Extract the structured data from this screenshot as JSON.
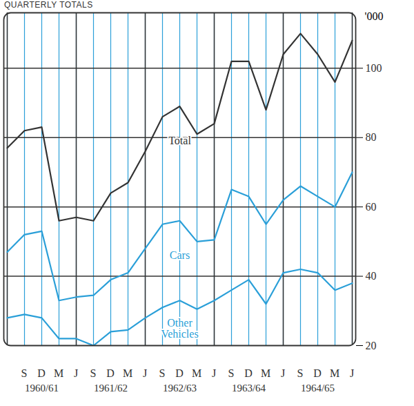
{
  "chart_data": {
    "type": "line",
    "title": "QUARTERLY TOTALS",
    "y_label": "'000",
    "categories": [
      null,
      "S",
      "D",
      "M",
      "J",
      "S",
      "D",
      "M",
      "J",
      "S",
      "D",
      "M",
      "J",
      "S",
      "D",
      "M",
      "J",
      "S",
      "D",
      "M",
      "J"
    ],
    "period_labels": [
      "1960/61",
      "1961/62",
      "1962/63",
      "1963/64",
      "1964/65"
    ],
    "series": [
      {
        "name": "Total",
        "color": "#333333",
        "values": [
          77,
          82,
          83,
          56,
          57,
          56,
          64,
          67,
          76,
          86,
          89,
          81,
          84,
          102,
          102,
          88,
          104,
          110,
          104,
          96,
          108
        ]
      },
      {
        "name": "Cars",
        "color": "#2a9fd8",
        "values": [
          47,
          52,
          53,
          33,
          34,
          34.5,
          39,
          41,
          48,
          55,
          56,
          50,
          50.5,
          65,
          63,
          55,
          62,
          66,
          63,
          60,
          70
        ]
      },
      {
        "name": "Other Vehicles",
        "color": "#2a9fd8",
        "values": [
          28,
          29,
          28,
          22,
          22,
          20,
          24,
          24.5,
          28,
          31,
          33,
          30.5,
          33,
          36,
          39,
          32,
          41,
          42,
          41,
          36,
          38
        ]
      }
    ],
    "ylim": [
      20,
      116
    ],
    "yticks": [
      20,
      40,
      60,
      80,
      100
    ],
    "grid": true
  }
}
